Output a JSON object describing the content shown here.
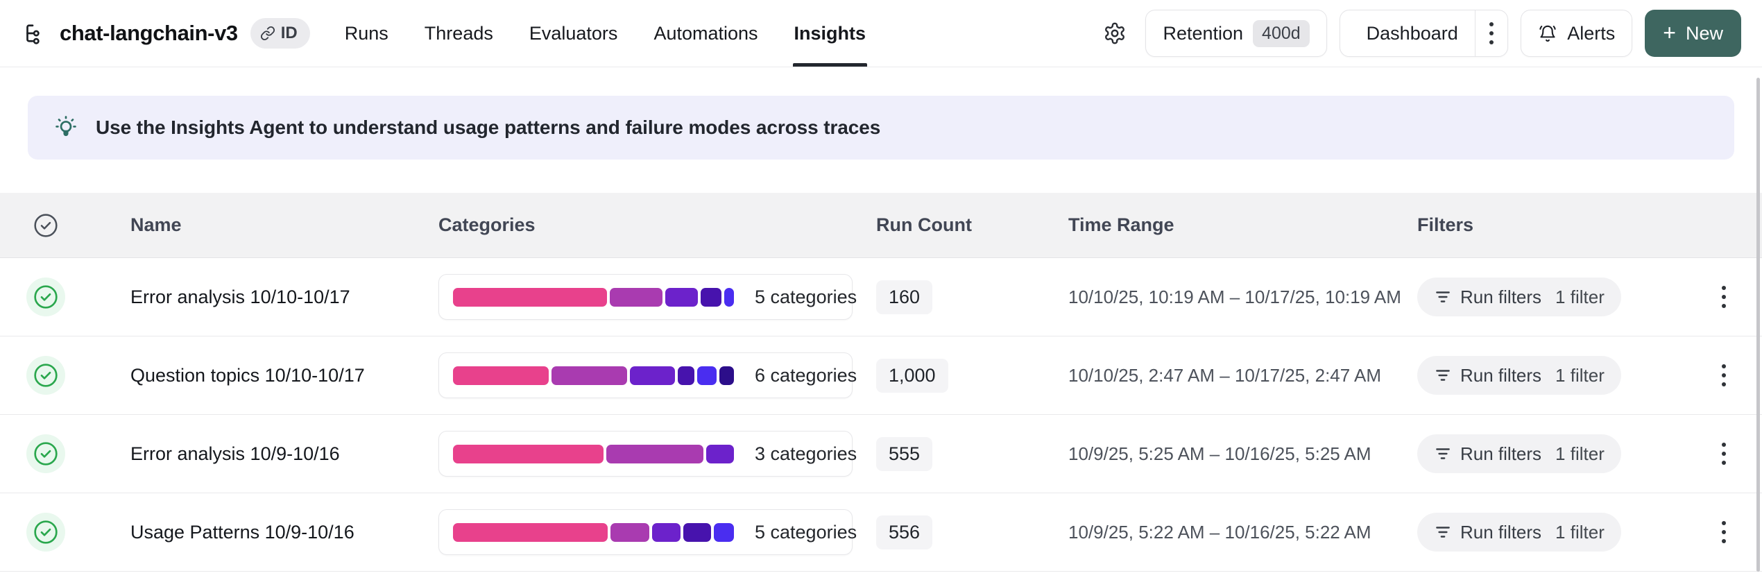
{
  "header": {
    "project": {
      "title": "chat-langchain-v3",
      "id_badge": "ID"
    },
    "tabs": [
      {
        "label": "Runs"
      },
      {
        "label": "Threads"
      },
      {
        "label": "Evaluators"
      },
      {
        "label": "Automations"
      },
      {
        "label": "Insights",
        "active": true
      }
    ],
    "actions": {
      "retention_label": "Retention",
      "retention_badge": "400d",
      "dashboard_label": "Dashboard",
      "alerts_label": "Alerts",
      "new_plus": "+",
      "new_label": "New"
    }
  },
  "banner": {
    "text": "Use the Insights Agent to understand usage patterns and failure modes across traces"
  },
  "table": {
    "columns": [
      "Name",
      "Categories",
      "Run Count",
      "Time Range",
      "Filters"
    ],
    "rows": [
      {
        "name": "Error analysis 10/10-10/17",
        "categories_label": "5 categories",
        "segments": [
          {
            "color": "#e8418c",
            "pct": 56
          },
          {
            "color": "#a93bb0",
            "pct": 19
          },
          {
            "color": "#6c22cb",
            "pct": 12
          },
          {
            "color": "#4713ad",
            "pct": 7.5
          },
          {
            "color": "#4a2df0",
            "pct": 3.5
          }
        ],
        "run_count": "160",
        "time_range": "10/10/25, 10:19 AM – 10/17/25, 10:19 AM",
        "filters_label": "Run filters",
        "filters_count": "1 filter"
      },
      {
        "name": "Question topics 10/10-10/17",
        "categories_label": "6 categories",
        "segments": [
          {
            "color": "#e8418c",
            "pct": 34
          },
          {
            "color": "#a93bb0",
            "pct": 27
          },
          {
            "color": "#6c22cb",
            "pct": 16
          },
          {
            "color": "#4713ad",
            "pct": 6
          },
          {
            "color": "#4a2df0",
            "pct": 7
          },
          {
            "color": "#2c0e8a",
            "pct": 5
          }
        ],
        "run_count": "1,000",
        "time_range": "10/10/25, 2:47 AM – 10/17/25, 2:47 AM",
        "filters_label": "Run filters",
        "filters_count": "1 filter"
      },
      {
        "name": "Error analysis 10/9-10/16",
        "categories_label": "3 categories",
        "segments": [
          {
            "color": "#e8418c",
            "pct": 54
          },
          {
            "color": "#a93bb0",
            "pct": 35
          },
          {
            "color": "#6c22cb",
            "pct": 10
          }
        ],
        "run_count": "555",
        "time_range": "10/9/25, 5:25 AM – 10/16/25, 5:25 AM",
        "filters_label": "Run filters",
        "filters_count": "1 filter"
      },
      {
        "name": "Usage Patterns 10/9-10/16",
        "categories_label": "5 categories",
        "segments": [
          {
            "color": "#e8418c",
            "pct": 55
          },
          {
            "color": "#a93bb0",
            "pct": 14
          },
          {
            "color": "#6c22cb",
            "pct": 10
          },
          {
            "color": "#4713ad",
            "pct": 10
          },
          {
            "color": "#4a2df0",
            "pct": 7
          }
        ],
        "run_count": "556",
        "time_range": "10/9/25, 5:22 AM – 10/16/25, 5:22 AM",
        "filters_label": "Run filters",
        "filters_count": "1 filter"
      }
    ]
  },
  "colors": {
    "new_button": "#3e6660",
    "banner_bg": "#efeffb",
    "banner_icon": "#2d6e64",
    "check_green": "#2aa74d",
    "segment_palette": [
      "#e8418c",
      "#a93bb0",
      "#6c22cb",
      "#4713ad",
      "#4a2df0",
      "#2c0e8a"
    ]
  }
}
